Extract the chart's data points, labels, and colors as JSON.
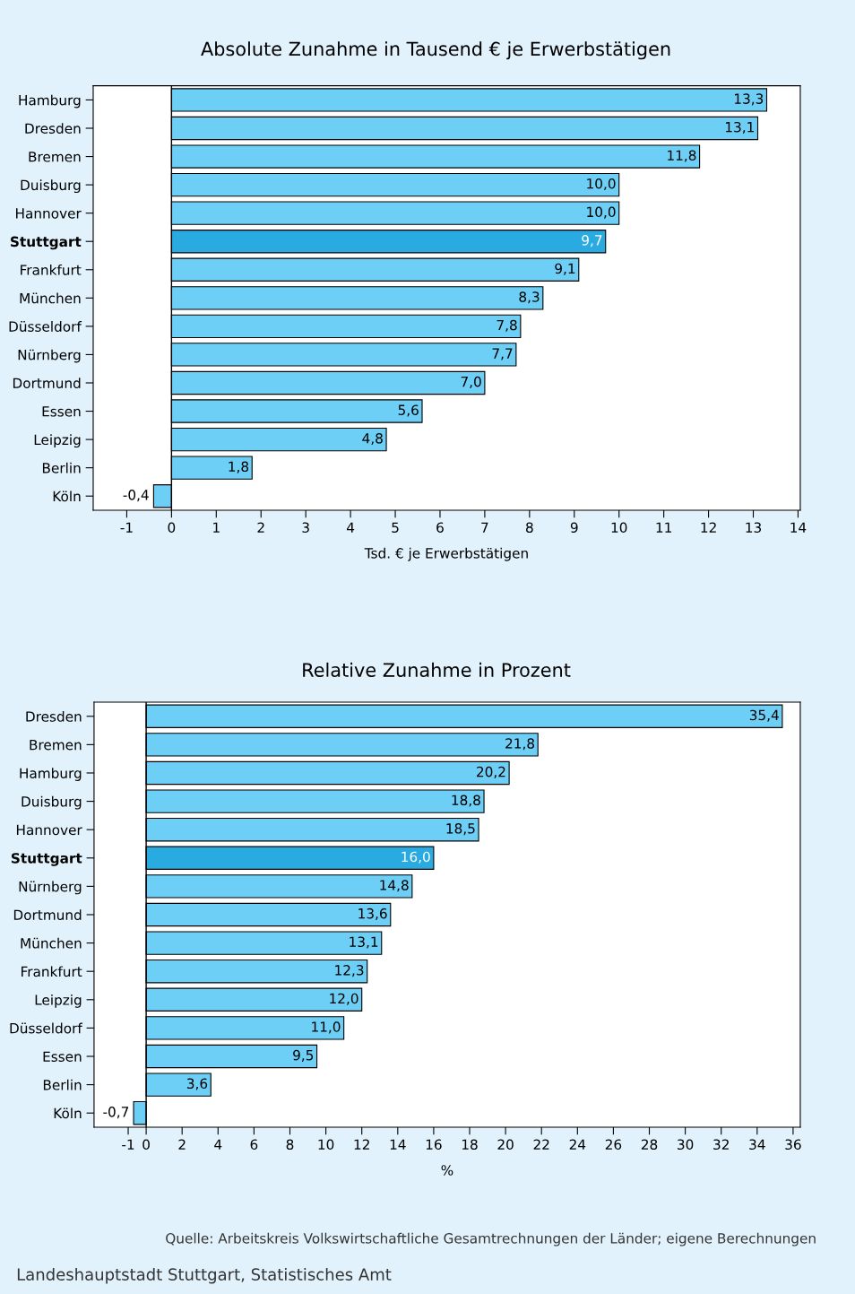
{
  "chart_data": [
    {
      "type": "bar",
      "orientation": "horizontal",
      "title": "Absolute Zunahme in Tausend € je Erwerbstätigen",
      "xlabel": "Tsd. € je Erwerbstätigen",
      "categories": [
        "Hamburg",
        "Dresden",
        "Bremen",
        "Duisburg",
        "Hannover",
        "Stuttgart",
        "Frankfurt",
        "München",
        "Düsseldorf",
        "Nürnberg",
        "Dortmund",
        "Essen",
        "Leipzig",
        "Berlin",
        "Köln"
      ],
      "values": [
        13.3,
        13.1,
        11.8,
        10.0,
        10.0,
        9.7,
        9.1,
        8.3,
        7.8,
        7.7,
        7.0,
        5.6,
        4.8,
        1.8,
        -0.4
      ],
      "value_labels": [
        "13,3",
        "13,1",
        "11,8",
        "10,0",
        "10,0",
        "9,7",
        "9,1",
        "8,3",
        "7,8",
        "7,7",
        "7,0",
        "5,6",
        "4,8",
        "1,8",
        "-0,4"
      ],
      "colors": [
        "#6dcff6",
        "#6dcff6",
        "#6dcff6",
        "#6dcff6",
        "#6dcff6",
        "#29abe2",
        "#6dcff6",
        "#6dcff6",
        "#6dcff6",
        "#6dcff6",
        "#6dcff6",
        "#6dcff6",
        "#6dcff6",
        "#6dcff6",
        "#6dcff6"
      ],
      "xlim": [
        -1.75,
        14.05
      ],
      "xticks": [
        -1,
        0,
        1,
        2,
        3,
        4,
        5,
        6,
        7,
        8,
        9,
        10,
        11,
        12,
        13,
        14
      ],
      "ref_lines": [
        {
          "axis": "x",
          "value": 0,
          "label": null,
          "color": "#000000"
        }
      ],
      "grid": false,
      "legend": false
    },
    {
      "type": "bar",
      "orientation": "horizontal",
      "title": "Relative Zunahme in Prozent",
      "xlabel": "%",
      "categories": [
        "Dresden",
        "Bremen",
        "Hamburg",
        "Duisburg",
        "Hannover",
        "Stuttgart",
        "Nürnberg",
        "Dortmund",
        "München",
        "Frankfurt",
        "Leipzig",
        "Düsseldorf",
        "Essen",
        "Berlin",
        "Köln"
      ],
      "values": [
        35.4,
        21.8,
        20.2,
        18.8,
        18.5,
        16.0,
        14.8,
        13.6,
        13.1,
        12.3,
        12.0,
        11.0,
        9.5,
        3.6,
        -0.7
      ],
      "value_labels": [
        "35,4",
        "21,8",
        "20,2",
        "18,8",
        "18,5",
        "16,0",
        "14,8",
        "13,6",
        "13,1",
        "12,3",
        "12,0",
        "11,0",
        "9,5",
        "3,6",
        "-0,7"
      ],
      "colors": [
        "#6dcff6",
        "#6dcff6",
        "#6dcff6",
        "#6dcff6",
        "#6dcff6",
        "#29abe2",
        "#6dcff6",
        "#6dcff6",
        "#6dcff6",
        "#6dcff6",
        "#6dcff6",
        "#6dcff6",
        "#6dcff6",
        "#6dcff6",
        "#6dcff6"
      ],
      "xlim": [
        -2.9,
        36.4
      ],
      "xticks": [
        -1,
        0,
        2,
        4,
        6,
        8,
        10,
        12,
        14,
        16,
        18,
        20,
        22,
        24,
        26,
        28,
        30,
        32,
        34,
        36
      ],
      "ref_lines": [
        {
          "axis": "x",
          "value": 0,
          "label": null,
          "color": "#000000"
        }
      ],
      "annotations": [
        "Quelle: Arbeitskreis Volkswirtschaftliche Gesamtrechnungen der Länder; eigene Berechnungen",
        "Landeshauptstadt Stuttgart, Statistisches Amt"
      ],
      "grid": false,
      "legend": false
    }
  ]
}
